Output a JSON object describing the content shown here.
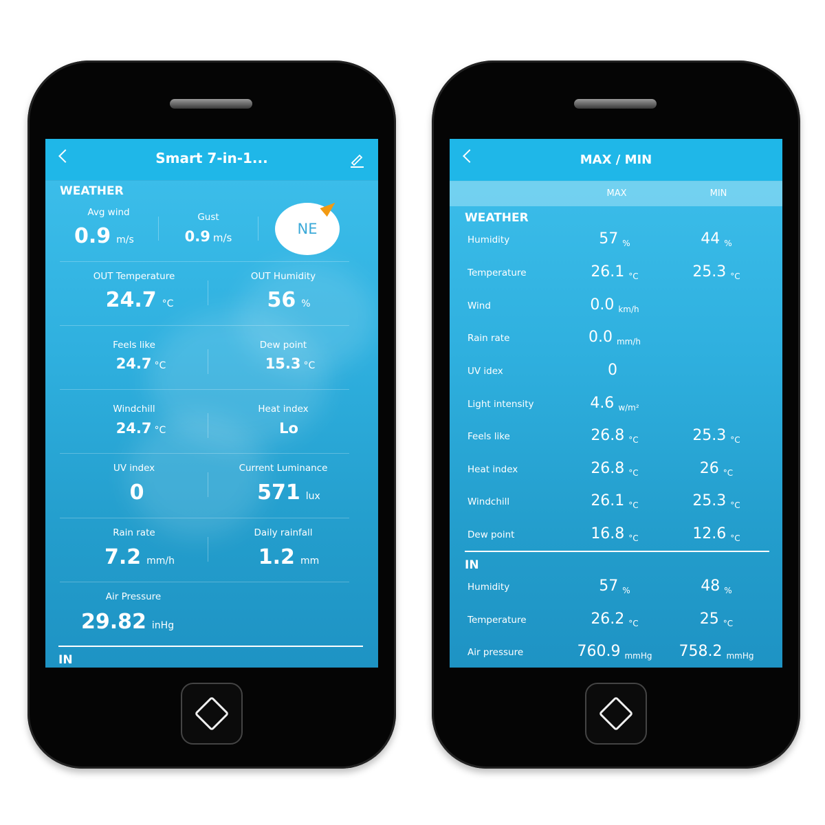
{
  "left": {
    "title": "Smart 7-in-1...",
    "section_weather": "WEATHER",
    "avg_wind": {
      "label": "Avg wind",
      "value": "0.9",
      "unit": "m/s"
    },
    "gust": {
      "label": "Gust",
      "value": "0.9",
      "unit": "m/s"
    },
    "wind_direction": "NE",
    "pairs": [
      [
        {
          "label": "OUT Temperature",
          "value": "24.7",
          "unit": "°C"
        },
        {
          "label": "OUT Humidity",
          "value": "56",
          "unit": "%"
        }
      ],
      [
        {
          "label": "Feels like",
          "value": "24.7",
          "unit": "°C"
        },
        {
          "label": "Dew point",
          "value": "15.3",
          "unit": "°C"
        }
      ],
      [
        {
          "label": "Windchill",
          "value": "24.7",
          "unit": "°C"
        },
        {
          "label": "Heat index",
          "value": "Lo",
          "unit": ""
        }
      ],
      [
        {
          "label": "UV index",
          "value": "0",
          "unit": ""
        },
        {
          "label": "Current Luminance",
          "value": "571",
          "unit": "lux"
        }
      ],
      [
        {
          "label": "Rain rate",
          "value": "7.2",
          "unit": "mm/h"
        },
        {
          "label": "Daily rainfall",
          "value": "1.2",
          "unit": "mm"
        }
      ]
    ],
    "air_pressure": {
      "label": "Air Pressure",
      "value": "29.82",
      "unit": "inHg"
    },
    "section_in": "IN"
  },
  "right": {
    "title": "MAX / MIN",
    "col_max": "MAX",
    "col_min": "MIN",
    "section_weather": "WEATHER",
    "weather_rows": [
      {
        "label": "Humidity",
        "max": "57",
        "max_unit": "%",
        "min": "44",
        "min_unit": "%"
      },
      {
        "label": "Temperature",
        "max": "26.1",
        "max_unit": "°C",
        "min": "25.3",
        "min_unit": "°C"
      },
      {
        "label": "Wind",
        "max": "0.0",
        "max_unit": "km/h",
        "min": "",
        "min_unit": ""
      },
      {
        "label": "Rain rate",
        "max": "0.0",
        "max_unit": "mm/h",
        "min": "",
        "min_unit": ""
      },
      {
        "label": "UV idex",
        "max": "0",
        "max_unit": "",
        "min": "",
        "min_unit": ""
      },
      {
        "label": "Light intensity",
        "max": "4.6",
        "max_unit": "w/m²",
        "min": "",
        "min_unit": ""
      },
      {
        "label": "Feels like",
        "max": "26.8",
        "max_unit": "°C",
        "min": "25.3",
        "min_unit": "°C"
      },
      {
        "label": "Heat index",
        "max": "26.8",
        "max_unit": "°C",
        "min": "26",
        "min_unit": "°C"
      },
      {
        "label": "Windchill",
        "max": "26.1",
        "max_unit": "°C",
        "min": "25.3",
        "min_unit": "°C"
      },
      {
        "label": "Dew point",
        "max": "16.8",
        "max_unit": "°C",
        "min": "12.6",
        "min_unit": "°C"
      }
    ],
    "section_in": "IN",
    "in_rows": [
      {
        "label": "Humidity",
        "max": "57",
        "max_unit": "%",
        "min": "48",
        "min_unit": "%"
      },
      {
        "label": "Temperature",
        "max": "26.2",
        "max_unit": "°C",
        "min": "25",
        "min_unit": "°C"
      },
      {
        "label": "Air pressure",
        "max": "760.9",
        "max_unit": "mmHg",
        "min": "758.2",
        "min_unit": "mmHg"
      }
    ]
  }
}
